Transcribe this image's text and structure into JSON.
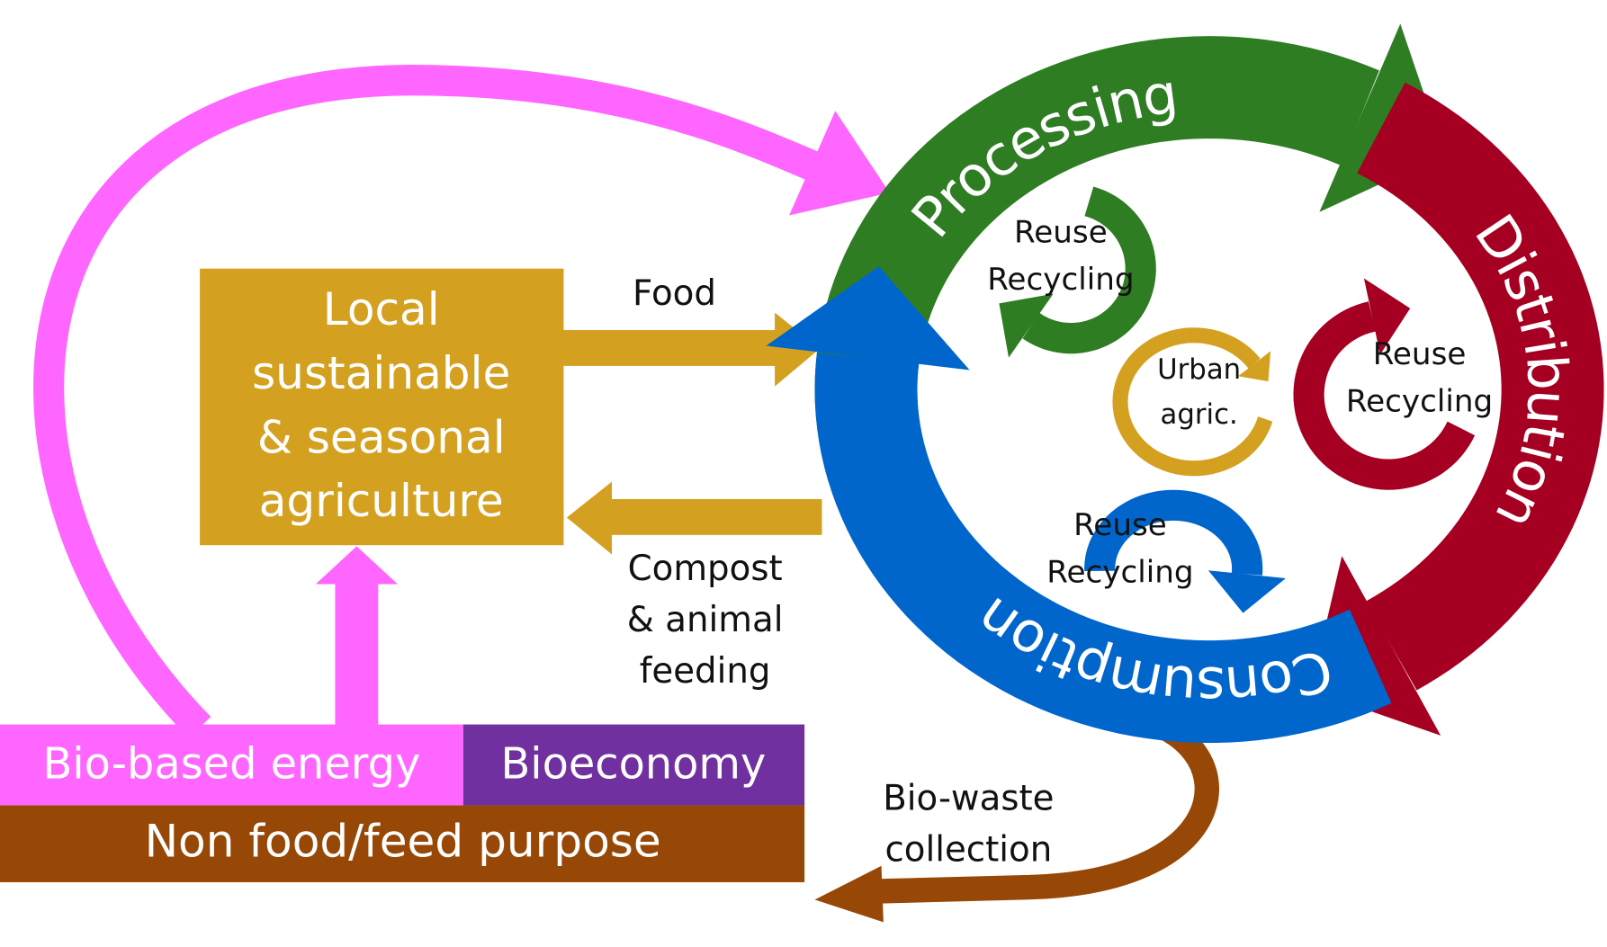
{
  "agriculture_box": {
    "lines": [
      "Local",
      "sustainable",
      "& seasonal",
      "agriculture"
    ]
  },
  "bottom_boxes": {
    "bio_based_energy": "Bio-based energy",
    "bioeconomy": "Bioeconomy",
    "non_food_purpose": "Non food/feed purpose"
  },
  "flows": {
    "food": "Food",
    "compost": [
      "Compost",
      "& animal",
      "feeding"
    ],
    "bio_waste": [
      "Bio-waste",
      "collection"
    ]
  },
  "cycle": {
    "stages": [
      "Processing",
      "Distribution",
      "Consumption"
    ],
    "loops": [
      [
        "Reuse",
        "Recycling"
      ],
      [
        "Reuse",
        "Recycling"
      ],
      [
        "Reuse",
        "Recycling"
      ]
    ],
    "urban": [
      "Urban",
      "agric."
    ]
  }
}
